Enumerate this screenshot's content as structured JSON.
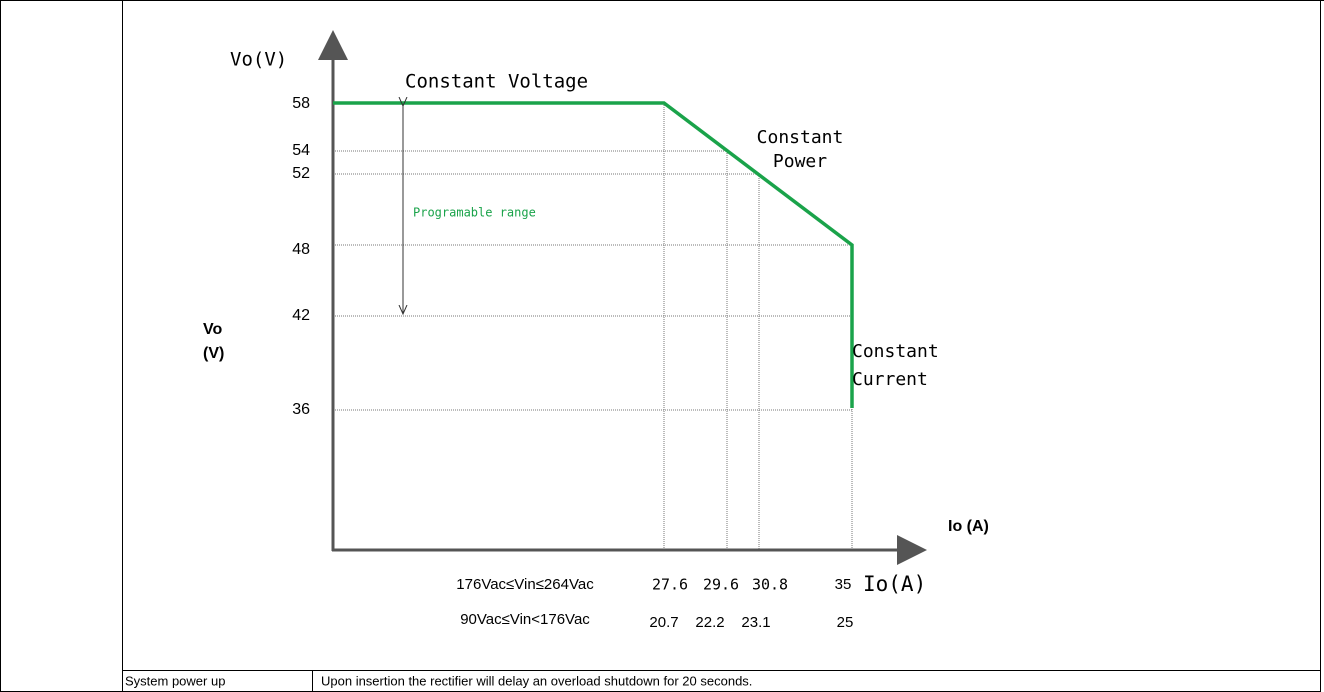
{
  "diagram": {
    "y_axis_title": "Vo(V)",
    "side_label": [
      "Vo",
      "(V)"
    ],
    "y_ticks": [
      58,
      54,
      52,
      48,
      42,
      36
    ],
    "region_cv": "Constant Voltage",
    "region_cp": [
      "Constant",
      "Power"
    ],
    "region_cc": [
      "Constant",
      "Current"
    ],
    "range_label": "Programable range",
    "x_axis_title": "Io (A)",
    "x_axis_title_2": "Io(A)",
    "input_ranges": [
      {
        "label": "176Vac≤Vin≤264Vac",
        "currents": [
          27.6,
          29.6,
          30.8,
          35
        ]
      },
      {
        "label": "90Vac≤Vin<176Vac",
        "currents": [
          20.7,
          22.2,
          23.1,
          25
        ]
      }
    ]
  },
  "footer_row": {
    "item": "System power up",
    "description": "Upon insertion the rectifier will delay an overload shutdown for 20 seconds."
  }
}
